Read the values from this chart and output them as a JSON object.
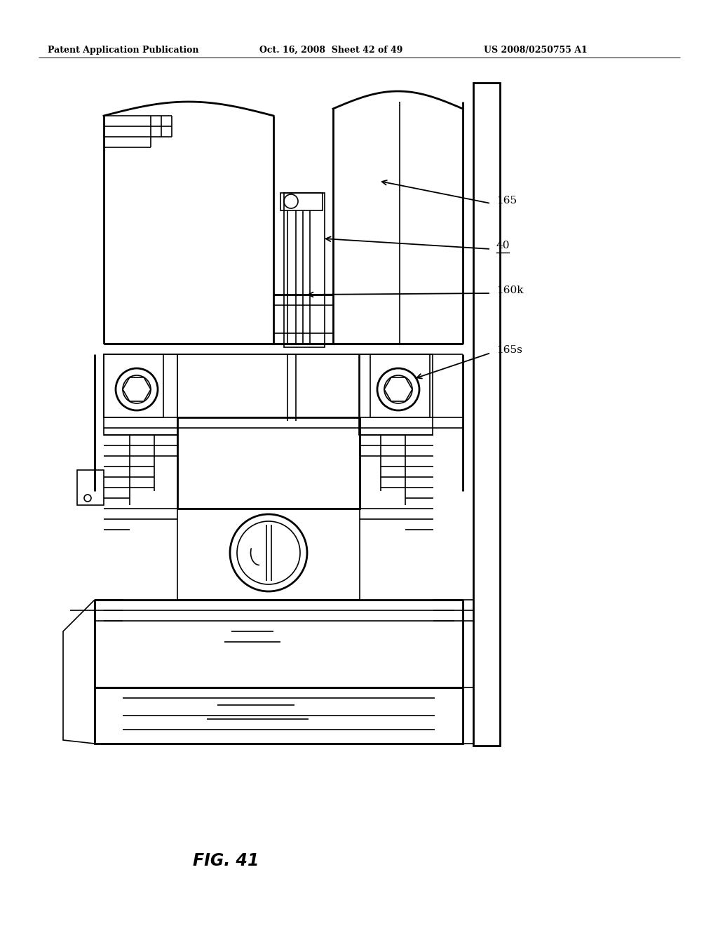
{
  "bg_color": "#ffffff",
  "line_color": "#000000",
  "header_left": "Patent Application Publication",
  "header_center": "Oct. 16, 2008  Sheet 42 of 49",
  "header_right": "US 2008/0250755 A1",
  "figure_label": "FIG. 41"
}
